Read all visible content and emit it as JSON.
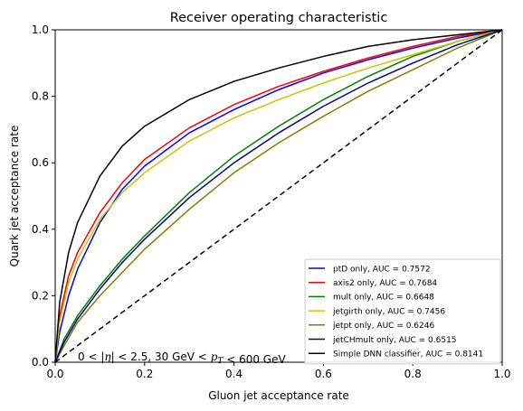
{
  "chart_data": {
    "type": "line",
    "title": "Receiver operating characteristic",
    "xlabel": "Gluon jet acceptance rate",
    "ylabel": "Quark jet acceptance rate",
    "xlim": [
      0.0,
      1.0
    ],
    "ylim": [
      0.0,
      1.0
    ],
    "xticks": [
      "0.0",
      "0.2",
      "0.4",
      "0.6",
      "0.8",
      "1.0"
    ],
    "yticks": [
      "0.0",
      "0.2",
      "0.4",
      "0.6",
      "0.8",
      "1.0"
    ],
    "grid": false,
    "legend_position": "lower-right",
    "annotation": {
      "parts": [
        {
          "text": "0 < |",
          "italic": false
        },
        {
          "text": "η",
          "italic": true
        },
        {
          "text": "| < 2.5,  30 GeV < ",
          "italic": false
        },
        {
          "text": "p",
          "italic": true
        },
        {
          "text": "T",
          "italic": true,
          "sub": true
        },
        {
          "text": " < 600 GeV",
          "italic": false
        }
      ]
    },
    "series": [
      {
        "name": "ptD only, AUC = 0.7572",
        "color": "#0000ff",
        "x": [
          0,
          0.01,
          0.03,
          0.05,
          0.1,
          0.15,
          0.2,
          0.3,
          0.4,
          0.5,
          0.6,
          0.7,
          0.8,
          0.9,
          1.0
        ],
        "y": [
          0,
          0.09,
          0.2,
          0.28,
          0.42,
          0.52,
          0.59,
          0.69,
          0.76,
          0.82,
          0.87,
          0.91,
          0.945,
          0.975,
          1.0
        ]
      },
      {
        "name": "axis2 only, AUC = 0.7684",
        "color": "#ff0000",
        "x": [
          0,
          0.01,
          0.03,
          0.05,
          0.1,
          0.15,
          0.2,
          0.3,
          0.4,
          0.5,
          0.6,
          0.7,
          0.8,
          0.9,
          1.0
        ],
        "y": [
          0,
          0.14,
          0.26,
          0.33,
          0.45,
          0.54,
          0.61,
          0.705,
          0.775,
          0.83,
          0.875,
          0.915,
          0.95,
          0.98,
          1.0
        ]
      },
      {
        "name": "mult only, AUC = 0.6648",
        "color": "#008000",
        "x": [
          0,
          0.02,
          0.05,
          0.1,
          0.15,
          0.2,
          0.3,
          0.4,
          0.5,
          0.6,
          0.7,
          0.8,
          0.9,
          1.0
        ],
        "y": [
          0,
          0.07,
          0.14,
          0.23,
          0.31,
          0.38,
          0.51,
          0.62,
          0.71,
          0.79,
          0.86,
          0.92,
          0.965,
          1.0
        ]
      },
      {
        "name": "jetgirth only, AUC = 0.7456",
        "color": "#c8c800",
        "x": [
          0,
          0.01,
          0.03,
          0.05,
          0.1,
          0.15,
          0.2,
          0.3,
          0.4,
          0.5,
          0.6,
          0.7,
          0.8,
          0.9,
          1.0
        ],
        "y": [
          0,
          0.12,
          0.24,
          0.31,
          0.43,
          0.51,
          0.57,
          0.665,
          0.735,
          0.79,
          0.84,
          0.885,
          0.925,
          0.965,
          1.0
        ]
      },
      {
        "name": "jetpt only, AUC = 0.6246",
        "color": "#808000",
        "x": [
          0,
          0.02,
          0.05,
          0.1,
          0.15,
          0.2,
          0.3,
          0.4,
          0.5,
          0.6,
          0.7,
          0.8,
          0.9,
          1.0
        ],
        "y": [
          0,
          0.05,
          0.12,
          0.2,
          0.27,
          0.34,
          0.46,
          0.57,
          0.66,
          0.74,
          0.815,
          0.88,
          0.945,
          1.0
        ]
      },
      {
        "name": "jetCHmult only, AUC = 0.6515",
        "color": "#00008b",
        "x": [
          0,
          0.02,
          0.05,
          0.1,
          0.15,
          0.2,
          0.3,
          0.4,
          0.5,
          0.6,
          0.7,
          0.8,
          0.9,
          1.0
        ],
        "y": [
          0,
          0.06,
          0.13,
          0.22,
          0.3,
          0.37,
          0.495,
          0.6,
          0.69,
          0.77,
          0.84,
          0.9,
          0.955,
          1.0
        ]
      },
      {
        "name": "Simple DNN classifier, AUC = 0.8141",
        "color": "#000000",
        "x": [
          0,
          0.01,
          0.03,
          0.05,
          0.1,
          0.15,
          0.2,
          0.3,
          0.4,
          0.5,
          0.6,
          0.7,
          0.8,
          0.9,
          1.0
        ],
        "y": [
          0,
          0.18,
          0.33,
          0.42,
          0.56,
          0.65,
          0.71,
          0.79,
          0.845,
          0.885,
          0.92,
          0.95,
          0.97,
          0.985,
          1.0
        ]
      },
      {
        "name": "",
        "color": "#000000",
        "dashed": true,
        "x": [
          0,
          1.0
        ],
        "y": [
          0,
          1.0
        ]
      }
    ]
  }
}
